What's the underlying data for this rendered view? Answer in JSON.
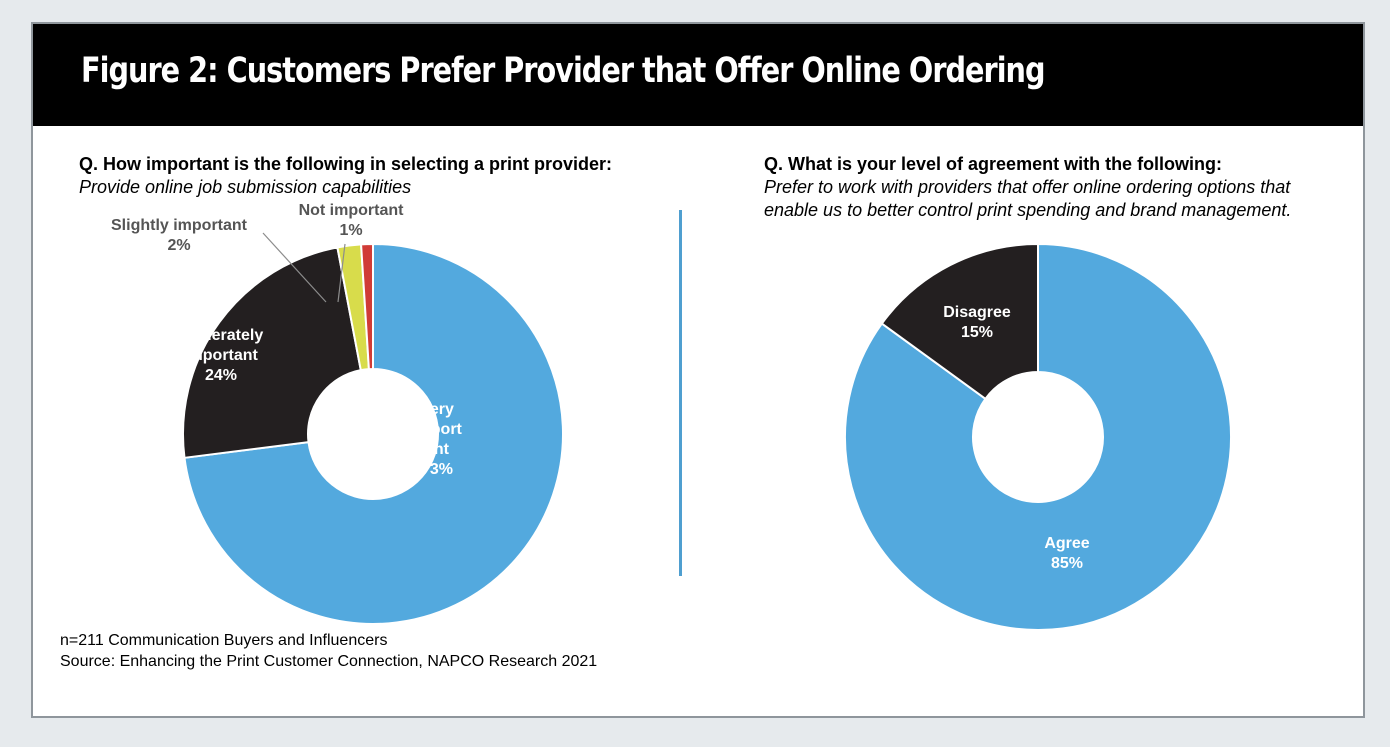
{
  "figure_title": "Figure 2: Customers Prefer Provider that Offer Online Ordering",
  "left": {
    "question_bold": "Q. How important is the following in selecting a print provider:",
    "question_italic": "Provide online job submission capabilities"
  },
  "right": {
    "question_bold": "Q. What is your level of agreement with the following:",
    "question_italic": "Prefer to work with providers that offer online ordering options that enable us to better control print spending and brand management."
  },
  "footnote": {
    "sample": "n=211 Communication Buyers and Influencers",
    "source": "Source: Enhancing the Print Customer Connection, NAPCO Research 2021"
  },
  "chart_data": [
    {
      "type": "donut",
      "slices": [
        {
          "name": "Very important",
          "label_lines": [
            "Very",
            "import",
            "ant",
            "73%"
          ],
          "value": 73,
          "color": "#53a9de"
        },
        {
          "name": "Moderately important",
          "label_lines": [
            "Moderately",
            "important",
            "24%"
          ],
          "value": 24,
          "color": "#231f20"
        },
        {
          "name": "Slightly important",
          "label_lines": [
            "Slightly important",
            "2%"
          ],
          "value": 2,
          "color": "#d8dc4b"
        },
        {
          "name": "Not important",
          "label_lines": [
            "Not important",
            "1%"
          ],
          "value": 1,
          "color": "#d03b36"
        }
      ]
    },
    {
      "type": "donut",
      "slices": [
        {
          "name": "Agree",
          "label_lines": [
            "Agree",
            "85%"
          ],
          "value": 85,
          "color": "#53a9de"
        },
        {
          "name": "Disagree",
          "label_lines": [
            "Disagree",
            "15%"
          ],
          "value": 15,
          "color": "#231f20"
        }
      ]
    }
  ]
}
